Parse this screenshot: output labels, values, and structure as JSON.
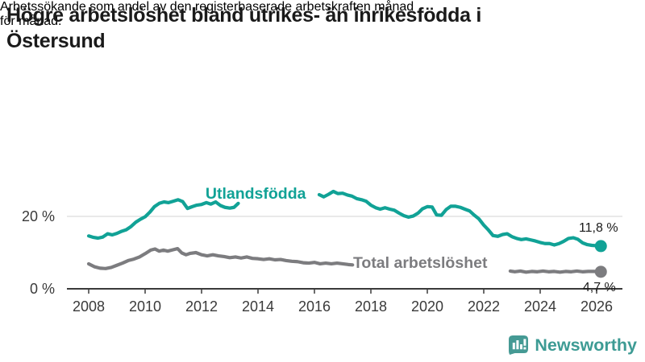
{
  "header": {
    "title_lines": [
      "Högre arbetslöshet bland utrikes- än inrikesfödda i",
      "Östersund"
    ],
    "subtitle_lines": [
      "Arbetssökande som andel av den registerbaserade arbetskraften månad",
      "för månad."
    ]
  },
  "branding": {
    "name": "Newsworthy",
    "icon": "newsworthy-bar-chart-bubble-icon",
    "color": "#3d9b94"
  },
  "colors": {
    "foreign_born_line": "#11a296",
    "total_line": "#7c7c7f",
    "axis": "#3a3a3a",
    "gridline": "#e2e2e2",
    "text": "#1a1a1a"
  },
  "chart_data": {
    "type": "line",
    "title": "Högre arbetslöshet bland utrikes- än inrikesfödda i Östersund",
    "subtitle": "Arbetssökande som andel av den registerbaserade arbetskraften månad för månad.",
    "xlabel": "",
    "ylabel": "",
    "grid": "horizontal-20-only",
    "legend_position": "inline-on-lines",
    "x_axis": {
      "ticks": [
        2008,
        2010,
        2012,
        2014,
        2016,
        2018,
        2020,
        2022,
        2024,
        2026
      ],
      "tick_labels": [
        "2008",
        "2010",
        "2012",
        "2014",
        "2016",
        "2018",
        "2020",
        "2022",
        "2024",
        "2026"
      ],
      "range": [
        2007.2,
        2026.9
      ]
    },
    "y_axis": {
      "ticks": [
        {
          "value": 0,
          "label": "0 %"
        },
        {
          "value": 20,
          "label": "20 %"
        }
      ],
      "range": [
        0,
        30
      ]
    },
    "series": [
      {
        "name": "Utlandsfödda",
        "color": "#11a296",
        "end_label": "11,8 %",
        "end_value": 11.8,
        "label_pos": {
          "year": 2012.14,
          "pct": 24.9
        },
        "end_label_pos": {
          "year": 2025.37,
          "pct": 15.8
        },
        "segments": [
          {
            "x": [
              2008.0,
              2008.17,
              2008.33,
              2008.5,
              2008.67,
              2008.83,
              2009.0,
              2009.17,
              2009.33,
              2009.5,
              2009.67,
              2009.83,
              2010.0,
              2010.17,
              2010.33,
              2010.5,
              2010.67,
              2010.83,
              2011.0,
              2011.17,
              2011.33,
              2011.5,
              2011.67,
              2011.83,
              2012.0,
              2012.17,
              2012.33,
              2012.5,
              2012.67,
              2012.83,
              2013.0,
              2013.15,
              2013.3
            ],
            "y": [
              14.6,
              14.2,
              14.0,
              14.3,
              15.2,
              14.9,
              15.3,
              15.9,
              16.3,
              17.2,
              18.4,
              19.2,
              19.9,
              21.2,
              22.7,
              23.6,
              24.0,
              23.8,
              24.2,
              24.6,
              24.1,
              22.2,
              22.7,
              23.1,
              23.3,
              23.8,
              23.4,
              24.0,
              23.0,
              22.5,
              22.3,
              22.5,
              23.6
            ]
          },
          {
            "x": [
              2016.17,
              2016.33,
              2016.5,
              2016.67,
              2016.83,
              2017.0,
              2017.17,
              2017.33,
              2017.5,
              2017.67,
              2017.83,
              2018.0,
              2018.17,
              2018.33,
              2018.5,
              2018.67,
              2018.83,
              2019.0,
              2019.17,
              2019.33,
              2019.5,
              2019.67,
              2019.83,
              2020.0,
              2020.17,
              2020.33,
              2020.5,
              2020.67,
              2020.83,
              2021.0,
              2021.17,
              2021.33,
              2021.5,
              2021.67,
              2021.83,
              2022.0,
              2022.17,
              2022.33,
              2022.5,
              2022.67,
              2022.83,
              2023.0,
              2023.17,
              2023.33,
              2023.5,
              2023.67,
              2023.83,
              2024.0,
              2024.17,
              2024.33,
              2024.5,
              2024.67,
              2024.83,
              2025.0,
              2025.17,
              2025.33,
              2025.5,
              2025.67,
              2025.83,
              2026.0,
              2026.15
            ],
            "y": [
              26.0,
              25.4,
              26.1,
              26.9,
              26.3,
              26.4,
              25.9,
              25.6,
              24.9,
              24.6,
              24.2,
              23.1,
              22.4,
              22.0,
              22.4,
              22.0,
              21.7,
              20.9,
              20.2,
              19.8,
              20.1,
              20.9,
              22.1,
              22.7,
              22.6,
              20.4,
              20.3,
              21.9,
              22.8,
              22.8,
              22.5,
              22.0,
              21.5,
              20.3,
              19.3,
              17.6,
              16.2,
              14.7,
              14.5,
              15.0,
              15.2,
              14.4,
              13.9,
              13.6,
              13.8,
              13.5,
              13.2,
              12.8,
              12.5,
              12.5,
              12.1,
              12.5,
              13.1,
              13.9,
              14.1,
              13.7,
              12.7,
              12.2,
              12.0,
              11.9,
              11.8
            ]
          }
        ]
      },
      {
        "name": "Total arbetslöshet",
        "color": "#7c7c7f",
        "end_label": "4,7 %",
        "end_value": 4.7,
        "label_pos": {
          "year": 2017.37,
          "pct": 5.8
        },
        "end_label_pos": {
          "year": 2025.51,
          "pct": -0.67
        },
        "segments": [
          {
            "x": [
              2008.0,
              2008.2,
              2008.4,
              2008.6,
              2008.8,
              2009.0,
              2009.2,
              2009.4,
              2009.6,
              2009.8,
              2010.0,
              2010.2,
              2010.35,
              2010.5,
              2010.65,
              2010.8,
              2011.0,
              2011.15,
              2011.3,
              2011.45,
              2011.6,
              2011.8,
              2012.0,
              2012.2,
              2012.4,
              2012.6,
              2012.8,
              2013.0,
              2013.2,
              2013.4,
              2013.6,
              2013.8,
              2014.0,
              2014.2,
              2014.4,
              2014.6,
              2014.8,
              2015.0,
              2015.2,
              2015.4,
              2015.6,
              2015.8,
              2016.0,
              2016.2,
              2016.4,
              2016.6,
              2016.8,
              2017.0,
              2017.2,
              2017.35
            ],
            "y": [
              6.9,
              6.1,
              5.7,
              5.6,
              5.9,
              6.5,
              7.1,
              7.8,
              8.2,
              8.8,
              9.7,
              10.7,
              11.0,
              10.4,
              10.7,
              10.4,
              10.8,
              11.1,
              9.9,
              9.4,
              9.8,
              10.0,
              9.4,
              9.1,
              9.4,
              9.1,
              8.9,
              8.6,
              8.8,
              8.5,
              8.8,
              8.4,
              8.3,
              8.1,
              8.3,
              8.0,
              8.1,
              7.8,
              7.6,
              7.5,
              7.2,
              7.1,
              7.3,
              6.9,
              7.1,
              6.9,
              7.1,
              6.9,
              6.7,
              6.6
            ]
          },
          {
            "x": [
              2022.94,
              2023.1,
              2023.3,
              2023.5,
              2023.7,
              2023.9,
              2024.1,
              2024.3,
              2024.5,
              2024.7,
              2024.9,
              2025.1,
              2025.3,
              2025.5,
              2025.7,
              2025.9,
              2026.15
            ],
            "y": [
              4.9,
              4.7,
              4.9,
              4.6,
              4.8,
              4.7,
              4.9,
              4.7,
              4.8,
              4.6,
              4.8,
              4.7,
              4.9,
              4.7,
              4.8,
              4.8,
              4.7
            ]
          }
        ]
      }
    ]
  }
}
